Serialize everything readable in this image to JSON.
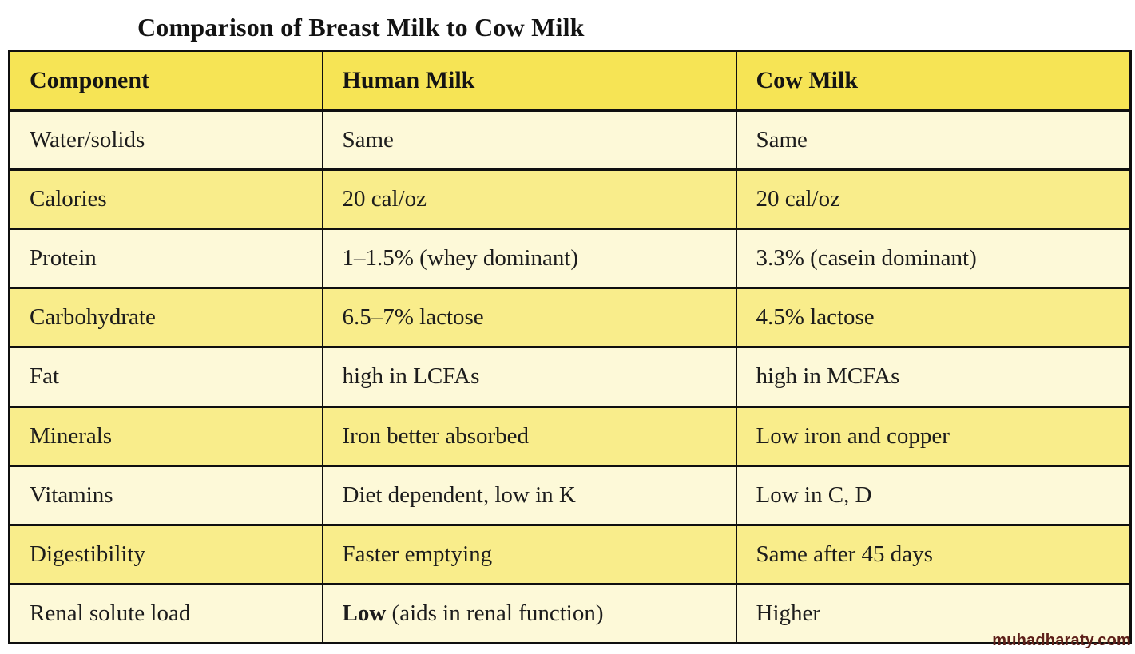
{
  "page": {
    "title": "Comparison of Breast Milk to Cow Milk"
  },
  "watermark": {
    "text": "muhadharaty.com",
    "color": "#5e201a"
  },
  "colors": {
    "header_bg": "#f6e455",
    "row_cream_bg": "#fdf9d8",
    "row_yellow_bg": "#f9ed8b",
    "border": "#0f0f0f",
    "text": "#1c1c1c",
    "page_bg": "#ffffff"
  },
  "table": {
    "headers": [
      "Component",
      "Human Milk",
      "Cow Milk"
    ],
    "rows": [
      {
        "component": "Water/solids",
        "human": "Same",
        "cow": "Same"
      },
      {
        "component": "Calories",
        "human": "20 cal/oz",
        "cow": "20 cal/oz"
      },
      {
        "component": "Protein",
        "human": "1–1.5% (whey dominant)",
        "cow": "3.3% (casein dominant)"
      },
      {
        "component": "Carbohydrate",
        "human": "6.5–7% lactose",
        "cow": "4.5% lactose"
      },
      {
        "component": "Fat",
        "human": "high in LCFAs",
        "cow": "high in MCFAs"
      },
      {
        "component": "Minerals",
        "human": "Iron better absorbed",
        "cow": "Low iron and copper"
      },
      {
        "component": "Vitamins",
        "human": "Diet dependent, low in K",
        "cow": "Low in C, D"
      },
      {
        "component": "Digestibility",
        "human": "Faster emptying",
        "cow": "Same after 45 days"
      },
      {
        "component": "Renal solute load",
        "human": "Low (aids in renal function)",
        "cow": "Higher",
        "human_bold": "Low",
        "human_rest": " (aids in renal function)"
      }
    ]
  }
}
